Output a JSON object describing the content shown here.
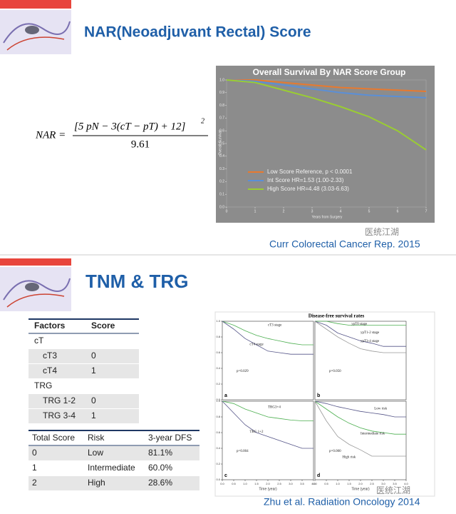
{
  "slide1": {
    "title": "NAR(Neoadjuvant Rectal) Score",
    "formula": {
      "lhs": "NAR =",
      "numerator": "[5 pN − 3(cT − pT) + 12]",
      "exponent": "2",
      "denominator": "9.61"
    },
    "citation": "Curr Colorectal Cancer Rep. 2015",
    "watermark": "医统江湖"
  },
  "slide2": {
    "title": "TNM & TRG",
    "factors_table": {
      "header": [
        "Factors",
        "Score"
      ],
      "rows": [
        [
          "cT"
        ],
        [
          "cT3",
          "0"
        ],
        [
          "cT4",
          "1"
        ],
        [
          "TRG"
        ],
        [
          "TRG 1-2",
          "0"
        ],
        [
          "TRG 3-4",
          "1"
        ]
      ]
    },
    "risk_table": {
      "header": [
        "Total Score",
        "Risk",
        "3-year DFS"
      ],
      "rows": [
        [
          "0",
          "Low",
          "81.1%"
        ],
        [
          "1",
          "Intermediate",
          "60.0%"
        ],
        [
          "2",
          "High",
          "28.6%"
        ]
      ]
    },
    "citation": "Zhu et al. Radiation Oncology 2014",
    "watermark": "医统江湖"
  },
  "chart_data": [
    {
      "type": "line",
      "title": "Overall Survival By NAR Score Group",
      "xlabel": "Years from Surgery",
      "ylabel": "Overall Survival",
      "x": [
        0,
        1,
        2,
        3,
        4,
        5,
        6,
        7
      ],
      "xlim": [
        0,
        7
      ],
      "ylim": [
        0,
        1
      ],
      "xticks": [
        0,
        1,
        2,
        3,
        4,
        5,
        6,
        7
      ],
      "yticks": [
        {
          "value": 0,
          "label": "0.0"
        },
        {
          "value": 0.1,
          "label": "0.1"
        },
        {
          "value": 0.2,
          "label": "0.2"
        },
        {
          "value": 0.3,
          "label": "0.3"
        },
        {
          "value": 0.4,
          "label": "0.4"
        },
        {
          "value": 0.5,
          "label": "0.5"
        },
        {
          "value": 0.6,
          "label": "0.6"
        },
        {
          "value": 0.7,
          "label": "0.7"
        },
        {
          "value": 0.8,
          "label": "0.8"
        },
        {
          "value": 0.9,
          "label": "0.9"
        },
        {
          "value": 1,
          "label": "1.0"
        }
      ],
      "legend": "lower-left",
      "series": [
        {
          "name": "Low Score Reference, p < 0.0001",
          "color": "#e8792e",
          "values": [
            1,
            1,
            0.98,
            0.96,
            0.94,
            0.93,
            0.92,
            0.91
          ]
        },
        {
          "name": "Int Score HR=1.53 (1.00-2.33)",
          "color": "#5b8fd6",
          "values": [
            1,
            0.99,
            0.96,
            0.93,
            0.9,
            0.88,
            0.87,
            0.86
          ]
        },
        {
          "name": "High Score HR=4.48 (3.03-6.63)",
          "color": "#9acd32",
          "values": [
            1,
            0.98,
            0.92,
            0.86,
            0.79,
            0.71,
            0.6,
            0.45
          ]
        }
      ]
    },
    {
      "type": "line",
      "title": "Disease-free survival rates",
      "label": "a",
      "annotation": "p=0.029",
      "x": [
        0,
        0.5,
        1,
        1.5,
        2,
        2.5,
        3,
        3.5,
        4
      ],
      "xlim": [
        0,
        4
      ],
      "ylim": [
        0,
        1
      ],
      "yticks": [
        {
          "value": 0,
          "label": "0.0"
        },
        {
          "value": 0.2,
          "label": "0.2"
        },
        {
          "value": 0.4,
          "label": "0.4"
        },
        {
          "value": 0.6,
          "label": "0.6"
        },
        {
          "value": 0.8,
          "label": "0.8"
        },
        {
          "value": 1,
          "label": "1.0"
        }
      ],
      "series": [
        {
          "name": "cT3 stage",
          "color": "#4caf50",
          "values": [
            1,
            0.95,
            0.88,
            0.82,
            0.78,
            0.75,
            0.72,
            0.7,
            0.7
          ]
        },
        {
          "name": "cT4 stage",
          "color": "#555588",
          "values": [
            1,
            0.9,
            0.78,
            0.7,
            0.62,
            0.6,
            0.58,
            0.58,
            0.58
          ]
        }
      ]
    },
    {
      "type": "line",
      "label": "b",
      "annotation": "p=0.050",
      "x": [
        0,
        0.5,
        1,
        1.5,
        2,
        2.5,
        3,
        3.5,
        4
      ],
      "xlim": [
        0,
        4
      ],
      "ylim": [
        0,
        1
      ],
      "series": [
        {
          "name": "ypT0 stage",
          "color": "#4caf50",
          "values": [
            1,
            1,
            0.97,
            0.95,
            0.95,
            0.95,
            0.95,
            0.95,
            0.95
          ]
        },
        {
          "name": "ypT1-2 stage",
          "color": "#555588",
          "values": [
            1,
            0.95,
            0.85,
            0.8,
            0.75,
            0.72,
            0.68,
            0.68,
            0.68
          ]
        },
        {
          "name": "ypT3-4 stage",
          "color": "#999999",
          "values": [
            1,
            0.9,
            0.8,
            0.72,
            0.65,
            0.62,
            0.6,
            0.6,
            0.6
          ]
        }
      ]
    },
    {
      "type": "line",
      "label": "c",
      "annotation": "p=0.004",
      "xlabel": "Time (year)",
      "x": [
        0,
        0.5,
        1,
        1.5,
        2,
        2.5,
        3,
        3.5,
        4
      ],
      "xlim": [
        0,
        4
      ],
      "ylim": [
        0,
        1
      ],
      "xticks": [
        {
          "value": 0,
          "label": "0.0"
        },
        {
          "value": 0.5,
          "label": "0.5"
        },
        {
          "value": 1,
          "label": "1.0"
        },
        {
          "value": 1.5,
          "label": "1.5"
        },
        {
          "value": 2,
          "label": "2.0"
        },
        {
          "value": 2.5,
          "label": "2.5"
        },
        {
          "value": 3,
          "label": "3.0"
        },
        {
          "value": 3.5,
          "label": "3.5"
        },
        {
          "value": 4,
          "label": "4.0"
        }
      ],
      "yticks": [
        {
          "value": 0,
          "label": "0.0"
        },
        {
          "value": 0.2,
          "label": "0.2"
        },
        {
          "value": 0.4,
          "label": "0.4"
        },
        {
          "value": 0.6,
          "label": "0.6"
        },
        {
          "value": 0.8,
          "label": "0.8"
        },
        {
          "value": 1,
          "label": "1.0"
        }
      ],
      "series": [
        {
          "name": "TRG3+4",
          "color": "#4caf50",
          "values": [
            1,
            0.97,
            0.9,
            0.85,
            0.8,
            0.78,
            0.76,
            0.75,
            0.75
          ]
        },
        {
          "name": "TRG 1+2",
          "color": "#555588",
          "values": [
            1,
            0.85,
            0.7,
            0.6,
            0.55,
            0.5,
            0.45,
            0.4,
            0.4
          ]
        }
      ]
    },
    {
      "type": "line",
      "label": "d",
      "annotation": "p=0.000",
      "xlabel": "Time (year)",
      "x": [
        0,
        0.5,
        1,
        1.5,
        2,
        2.5,
        3,
        3.5,
        4
      ],
      "xlim": [
        0,
        4
      ],
      "ylim": [
        0,
        1
      ],
      "xticks": [
        {
          "value": 0,
          "label": "0.0"
        },
        {
          "value": 0.5,
          "label": "0.5"
        },
        {
          "value": 1,
          "label": "1.0"
        },
        {
          "value": 1.5,
          "label": "1.5"
        },
        {
          "value": 2,
          "label": "2.0"
        },
        {
          "value": 2.5,
          "label": "2.5"
        },
        {
          "value": 3,
          "label": "3.0"
        },
        {
          "value": 3.5,
          "label": "3.5"
        },
        {
          "value": 4,
          "label": "4.0"
        }
      ],
      "series": [
        {
          "name": "Low risk",
          "color": "#555588",
          "values": [
            1,
            0.97,
            0.93,
            0.9,
            0.87,
            0.85,
            0.83,
            0.8,
            0.8
          ]
        },
        {
          "name": "Intermediate risk",
          "color": "#4caf50",
          "values": [
            1,
            0.9,
            0.8,
            0.72,
            0.66,
            0.62,
            0.6,
            0.58,
            0.58
          ]
        },
        {
          "name": "High risk",
          "color": "#999999",
          "values": [
            1,
            0.75,
            0.55,
            0.45,
            0.38,
            0.3,
            0.3,
            0.3,
            0.3
          ]
        }
      ]
    }
  ]
}
